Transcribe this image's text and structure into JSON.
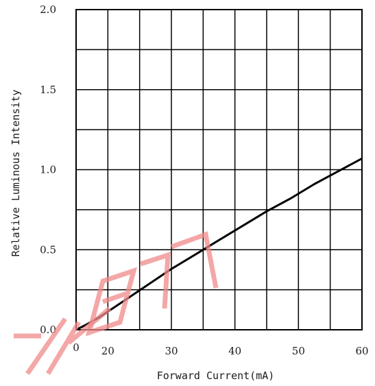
{
  "chart_data": {
    "type": "line",
    "title": "",
    "xlabel": "Forward Current(mA)",
    "ylabel": "Relative Luminous Intensity",
    "xlim": [
      0,
      60
    ],
    "ylim": [
      0,
      2.0
    ],
    "x_ticks": [
      "0",
      "20",
      "30",
      "40",
      "50",
      "60"
    ],
    "x_tick_values": [
      0,
      20,
      30,
      40,
      50,
      60
    ],
    "y_ticks": [
      "0.0",
      "0.5",
      "1.0",
      "1.5",
      "2.0"
    ],
    "y_tick_values": [
      0,
      0.5,
      1.0,
      1.5,
      2.0
    ],
    "grid": true,
    "legend": "none",
    "series": [
      {
        "x": [
          0,
          2,
          5,
          10,
          15,
          20,
          25,
          30,
          35,
          40,
          45,
          50,
          55,
          60
        ],
        "y": [
          0.0,
          0.03,
          0.08,
          0.18,
          0.28,
          0.38,
          0.47,
          0.56,
          0.65,
          0.74,
          0.82,
          0.91,
          0.99,
          1.07
        ],
        "color": "#000000"
      }
    ]
  },
  "watermark": {
    "text": "水印",
    "color": "#f08a8a"
  }
}
